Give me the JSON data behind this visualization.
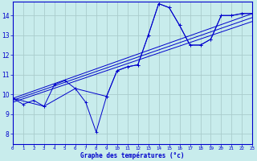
{
  "bg_color": "#c8ecec",
  "grid_color": "#aacccc",
  "line_color": "#0000cc",
  "xlim": [
    0,
    23
  ],
  "ylim": [
    7.5,
    14.7
  ],
  "yticks": [
    8,
    9,
    10,
    11,
    12,
    13,
    14
  ],
  "xticks": [
    0,
    1,
    2,
    3,
    4,
    5,
    6,
    7,
    8,
    9,
    10,
    11,
    12,
    13,
    14,
    15,
    16,
    17,
    18,
    19,
    20,
    21,
    22,
    23
  ],
  "xlabel": "Graphe des températures (°c)",
  "hourly_x": [
    0,
    1,
    2,
    3,
    4,
    5,
    6,
    7,
    8,
    9,
    10,
    11,
    12,
    13,
    14,
    15,
    16,
    17,
    18,
    19,
    20,
    21,
    22,
    23
  ],
  "hourly_y": [
    9.8,
    9.5,
    9.7,
    9.4,
    10.5,
    10.7,
    10.3,
    9.6,
    8.1,
    9.9,
    11.2,
    11.4,
    11.5,
    13.0,
    14.6,
    14.4,
    13.5,
    12.5,
    12.5,
    12.8,
    14.0,
    14.0,
    14.1,
    14.1
  ],
  "line2_x": [
    0,
    3,
    6,
    9,
    10,
    11,
    12,
    13,
    14,
    15,
    16,
    17,
    18,
    19,
    20,
    21,
    22,
    23
  ],
  "line2_y": [
    9.8,
    9.4,
    10.3,
    9.9,
    11.2,
    11.4,
    11.5,
    13.0,
    14.6,
    14.4,
    13.5,
    12.5,
    12.5,
    12.8,
    14.0,
    14.0,
    14.1,
    14.1
  ],
  "trend1_x": [
    0,
    23
  ],
  "trend1_y": [
    9.8,
    14.1
  ],
  "trend2_x": [
    0,
    23
  ],
  "trend2_y": [
    9.7,
    13.9
  ],
  "trend3_x": [
    0,
    23
  ],
  "trend3_y": [
    9.6,
    13.7
  ]
}
